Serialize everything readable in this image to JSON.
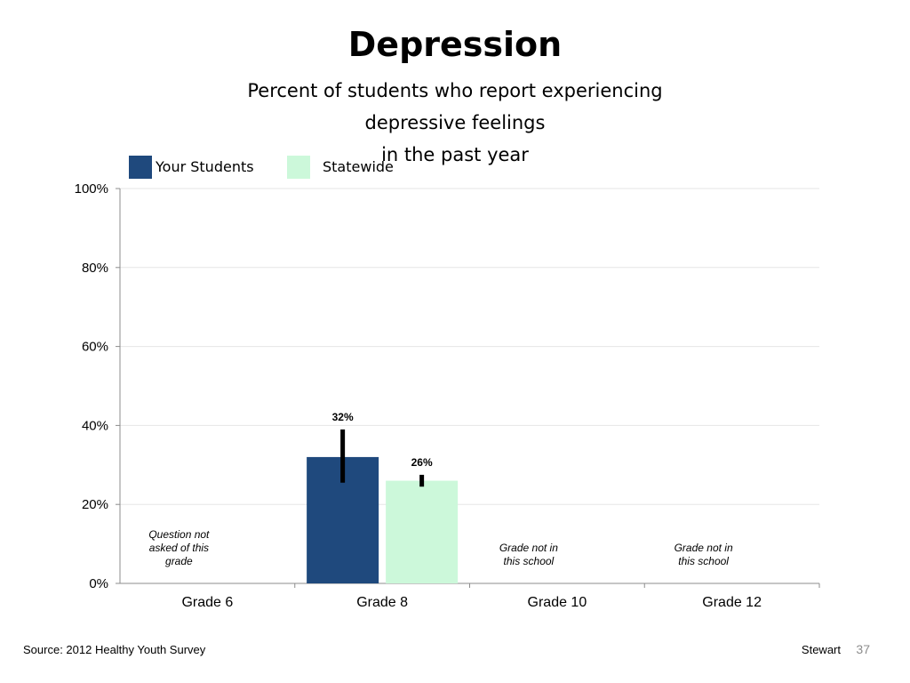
{
  "slide": {
    "title": "Depression",
    "subtitle_line1": "Percent of students who report experiencing depressive feelings",
    "subtitle_line2": "in the past year",
    "source": "Source: 2012 Healthy Youth Survey",
    "author": "Stewart",
    "page_number": "37"
  },
  "colors": {
    "your_students": "#1f497d",
    "statewide": "#ccf8da",
    "grid": "#e6e6e6",
    "axis": "#8c8c8c",
    "error_bar": "#000000"
  },
  "chart_data": {
    "type": "bar",
    "categories": [
      "Grade 6",
      "Grade 8",
      "Grade 10",
      "Grade 12"
    ],
    "series": [
      {
        "name": "Your Students",
        "values": [
          null,
          32,
          null,
          null
        ],
        "labels": [
          "",
          "32%",
          "",
          ""
        ],
        "error_low": [
          null,
          25.5,
          null,
          null
        ],
        "error_high": [
          null,
          39,
          null,
          null
        ]
      },
      {
        "name": "Statewide",
        "values": [
          null,
          26,
          null,
          null
        ],
        "labels": [
          "",
          "26%",
          "",
          ""
        ],
        "error_low": [
          null,
          24.5,
          null,
          null
        ],
        "error_high": [
          null,
          27.5,
          null,
          null
        ]
      }
    ],
    "yticks": [
      "0%",
      "20%",
      "40%",
      "60%",
      "80%",
      "100%"
    ],
    "ylim": [
      0,
      100
    ],
    "grid": true,
    "legend": "top-left",
    "notes": [
      {
        "category": "Grade 6",
        "lines": [
          "Question not",
          "asked of this",
          "grade"
        ]
      },
      {
        "category": "Grade 10",
        "lines": [
          "Grade not in",
          "this school"
        ]
      },
      {
        "category": "Grade 12",
        "lines": [
          "Grade not in",
          "this school"
        ]
      }
    ]
  }
}
